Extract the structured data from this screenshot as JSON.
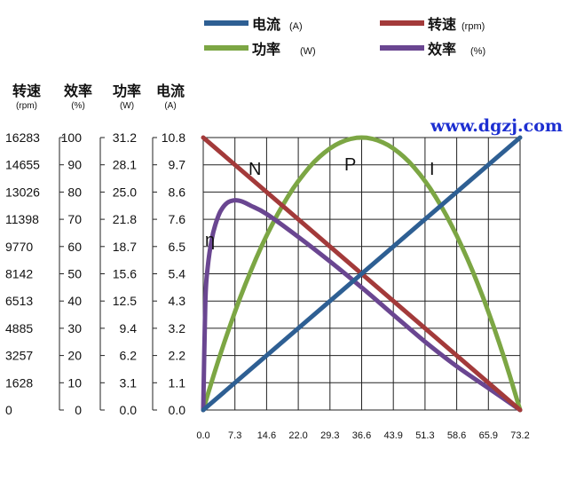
{
  "chart_data": {
    "type": "line",
    "watermark": "www.dgzj.com",
    "legend": {
      "position": "top",
      "entries": [
        {
          "name": "电流",
          "unit": "(A)",
          "color": "#2e5f93"
        },
        {
          "name": "转速",
          "unit": "(rpm)",
          "color": "#a33a3a"
        },
        {
          "name": "功率",
          "unit": "(W)",
          "color": "#7ca644"
        },
        {
          "name": "效率",
          "unit": "(%)",
          "color": "#6a4691"
        }
      ]
    },
    "x_axis": {
      "ticks": [
        "0.0",
        "7.3",
        "14.6",
        "22.0",
        "29.3",
        "36.6",
        "43.9",
        "51.3",
        "58.6",
        "65.9",
        "73.2"
      ],
      "range": [
        0,
        73.2
      ]
    },
    "y_axes": [
      {
        "id": "speed",
        "title": "转速",
        "unit": "(rpm)",
        "range": [
          0,
          16283
        ],
        "ticks": [
          "0",
          "1628",
          "3257",
          "4885",
          "6513",
          "8142",
          "9770",
          "11398",
          "13026",
          "14655",
          "16283"
        ]
      },
      {
        "id": "efficiency",
        "title": "效率",
        "unit": "(%)",
        "range": [
          0,
          100
        ],
        "ticks": [
          "0",
          "10",
          "20",
          "30",
          "40",
          "50",
          "60",
          "70",
          "80",
          "90",
          "100"
        ]
      },
      {
        "id": "power",
        "title": "功率",
        "unit": "(W)",
        "range": [
          0,
          31.2
        ],
        "ticks": [
          "0.0",
          "3.1",
          "6.2",
          "9.4",
          "12.5",
          "15.6",
          "18.7",
          "21.8",
          "25.0",
          "28.1",
          "31.2"
        ]
      },
      {
        "id": "current",
        "title": "电流",
        "unit": "(A)",
        "range": [
          0,
          10.8
        ],
        "ticks": [
          "0.0",
          "1.1",
          "2.2",
          "3.2",
          "4.3",
          "5.4",
          "6.5",
          "7.6",
          "8.6",
          "9.7",
          "10.8"
        ]
      }
    ],
    "grid": true,
    "series": [
      {
        "name": "电流",
        "axis": "current",
        "color": "#2e5f93",
        "label": "I",
        "x": [
          0,
          73.2
        ],
        "y": [
          0,
          10.8
        ]
      },
      {
        "name": "转速",
        "axis": "speed",
        "color": "#a33a3a",
        "label": "N",
        "x": [
          0,
          73.2
        ],
        "y": [
          16283,
          0
        ]
      },
      {
        "name": "功率",
        "axis": "power",
        "color": "#7ca644",
        "label": "P",
        "x": [
          0,
          7.3,
          14.6,
          22.0,
          29.3,
          36.6,
          43.9,
          51.3,
          58.6,
          65.9,
          73.2
        ],
        "y": [
          0,
          11.2,
          20.0,
          26.2,
          30.0,
          31.2,
          30.0,
          26.2,
          20.0,
          11.2,
          0
        ]
      },
      {
        "name": "效率",
        "axis": "efficiency",
        "color": "#6a4691",
        "label": "η",
        "x": [
          0,
          0.5,
          1,
          2,
          3,
          4,
          5.5,
          7.3,
          9,
          11,
          14.6,
          22.0,
          29.3,
          36.6,
          43.9,
          51.3,
          58.6,
          65.9,
          73.2
        ],
        "y": [
          0,
          40,
          52,
          63,
          69,
          73,
          76,
          77,
          76.5,
          75,
          72,
          63.5,
          54.5,
          45,
          35,
          25,
          16,
          8,
          0
        ]
      }
    ]
  }
}
